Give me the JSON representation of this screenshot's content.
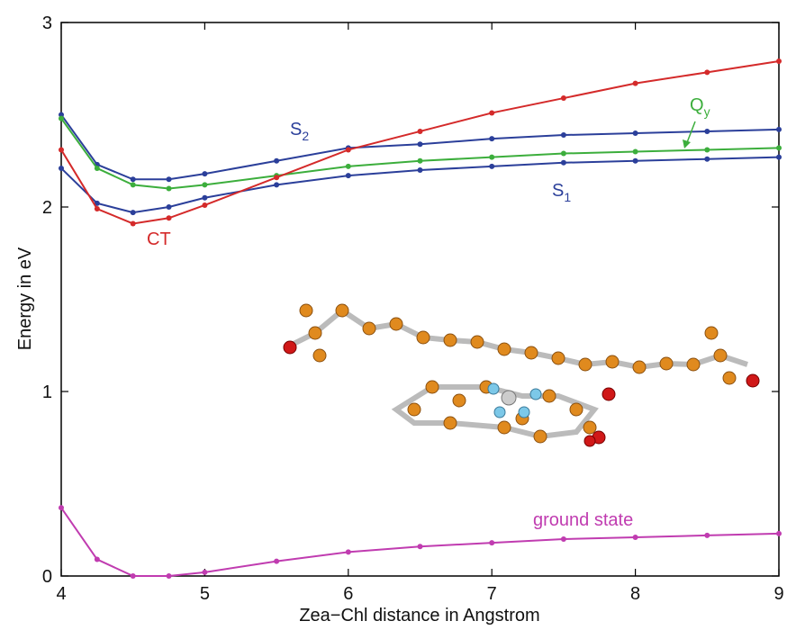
{
  "chart_data": {
    "type": "line",
    "x_label": "Zea−Chl distance in Angstrom",
    "y_label": "Energy in eV",
    "x": [
      4,
      4.25,
      4.5,
      4.75,
      5,
      5.5,
      6,
      6.5,
      7,
      7.5,
      8,
      8.5,
      9
    ],
    "series": [
      {
        "name": "S",
        "subscript": "2",
        "color": "#2b3f9a",
        "values": [
          2.5,
          2.23,
          2.15,
          2.15,
          2.18,
          2.25,
          2.32,
          2.34,
          2.37,
          2.39,
          2.4,
          2.41,
          2.42
        ]
      },
      {
        "name": "Q",
        "subscript": "y",
        "color": "#3cae3c",
        "values": [
          2.48,
          2.21,
          2.12,
          2.1,
          2.12,
          2.17,
          2.22,
          2.25,
          2.27,
          2.29,
          2.3,
          2.31,
          2.32
        ]
      },
      {
        "name": "S",
        "subscript": "1",
        "color": "#2b3f9a",
        "values": [
          2.21,
          2.02,
          1.97,
          2.0,
          2.05,
          2.12,
          2.17,
          2.2,
          2.22,
          2.24,
          2.25,
          2.26,
          2.27
        ]
      },
      {
        "name": "CT",
        "color": "#d42a2a",
        "values": [
          2.31,
          1.99,
          1.91,
          1.94,
          2.01,
          2.16,
          2.31,
          2.41,
          2.51,
          2.59,
          2.67,
          2.73,
          2.79
        ]
      },
      {
        "name": "ground state",
        "color": "#c03cb0",
        "values": [
          0.37,
          0.09,
          0.0,
          0.0,
          0.02,
          0.08,
          0.13,
          0.16,
          0.18,
          0.2,
          0.21,
          0.22,
          0.23
        ]
      }
    ],
    "xlim": [
      4,
      9
    ],
    "xticks": [
      4,
      5,
      6,
      7,
      8,
      9
    ],
    "ylim": [
      0,
      3
    ],
    "yticks": [
      0,
      1,
      2,
      3
    ]
  }
}
